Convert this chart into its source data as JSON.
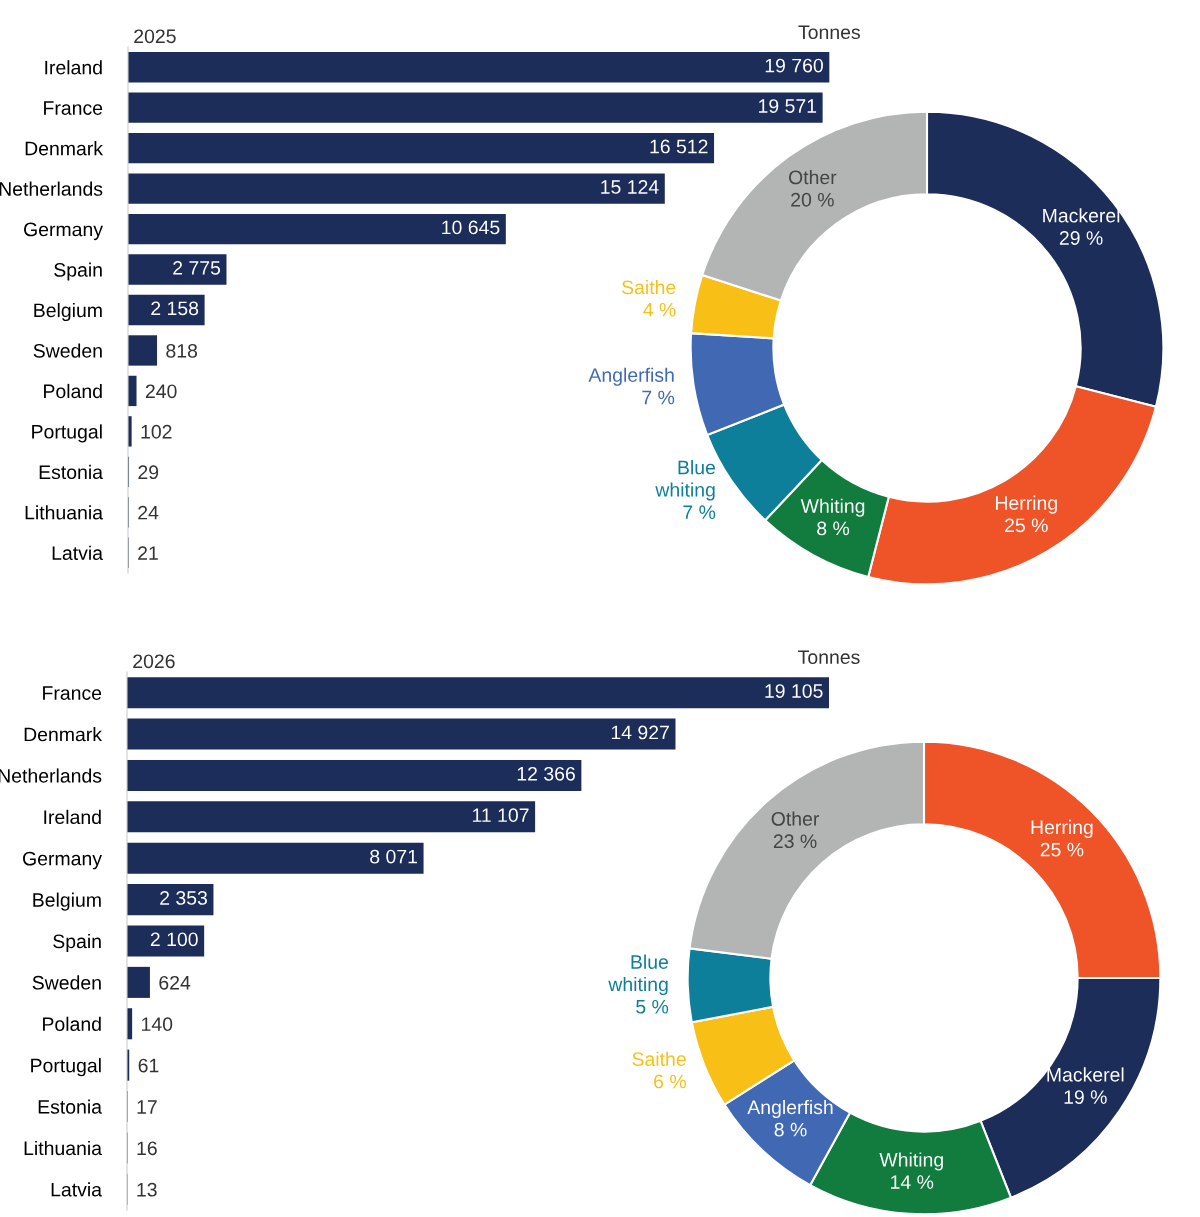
{
  "chart_data": [
    {
      "type": "bar",
      "orientation": "horizontal",
      "title": "2025",
      "xlabel": "Tonnes",
      "categories": [
        "Ireland",
        "France",
        "Denmark",
        "Netherlands",
        "Germany",
        "Spain",
        "Belgium",
        "Sweden",
        "Poland",
        "Portugal",
        "Estonia",
        "Lithuania",
        "Latvia"
      ],
      "values": [
        19760,
        19571,
        16512,
        15124,
        10645,
        2775,
        2158,
        818,
        240,
        102,
        29,
        24,
        21
      ],
      "value_labels": [
        "19 760",
        "19 571",
        "16 512",
        "15 124",
        "10 645",
        "2 775",
        "2 158",
        "818",
        "240",
        "102",
        "29",
        "24",
        "21"
      ],
      "color": "#1c2d5a"
    },
    {
      "type": "donut",
      "categories": [
        "Mackerel",
        "Herring",
        "Whiting",
        "Blue whiting",
        "Anglerfish",
        "Saithe",
        "Other"
      ],
      "values": [
        29,
        25,
        8,
        7,
        7,
        4,
        20
      ],
      "value_labels": [
        "29 %",
        "25 %",
        "8 %",
        "7 %",
        "7 %",
        "4 %",
        "20 %"
      ],
      "colors": [
        "#1c2d5a",
        "#ef5428",
        "#127c3e",
        "#0e7f9b",
        "#4169b3",
        "#f8c016",
        "#b3b4b4"
      ]
    },
    {
      "type": "bar",
      "orientation": "horizontal",
      "title": "2026",
      "xlabel": "Tonnes",
      "categories": [
        "France",
        "Denmark",
        "Netherlands",
        "Ireland",
        "Germany",
        "Belgium",
        "Spain",
        "Sweden",
        "Poland",
        "Portugal",
        "Estonia",
        "Lithuania",
        "Latvia"
      ],
      "values": [
        19105,
        14927,
        12366,
        11107,
        8071,
        2353,
        2100,
        624,
        140,
        61,
        17,
        16,
        13
      ],
      "value_labels": [
        "19 105",
        "14 927",
        "12 366",
        "11 107",
        "8 071",
        "2 353",
        "2 100",
        "624",
        "140",
        "61",
        "17",
        "16",
        "13"
      ],
      "color": "#1c2d5a"
    },
    {
      "type": "donut",
      "categories": [
        "Herring",
        "Mackerel",
        "Whiting",
        "Anglerfish",
        "Saithe",
        "Blue whiting",
        "Other"
      ],
      "values": [
        25,
        19,
        14,
        8,
        6,
        5,
        23
      ],
      "value_labels": [
        "25 %",
        "19 %",
        "14 %",
        "8 %",
        "6 %",
        "5 %",
        "23 %"
      ],
      "colors": [
        "#ef5428",
        "#1c2d5a",
        "#127c3e",
        "#4169b3",
        "#f8c016",
        "#0e7f9b",
        "#b3b4b4"
      ]
    }
  ]
}
